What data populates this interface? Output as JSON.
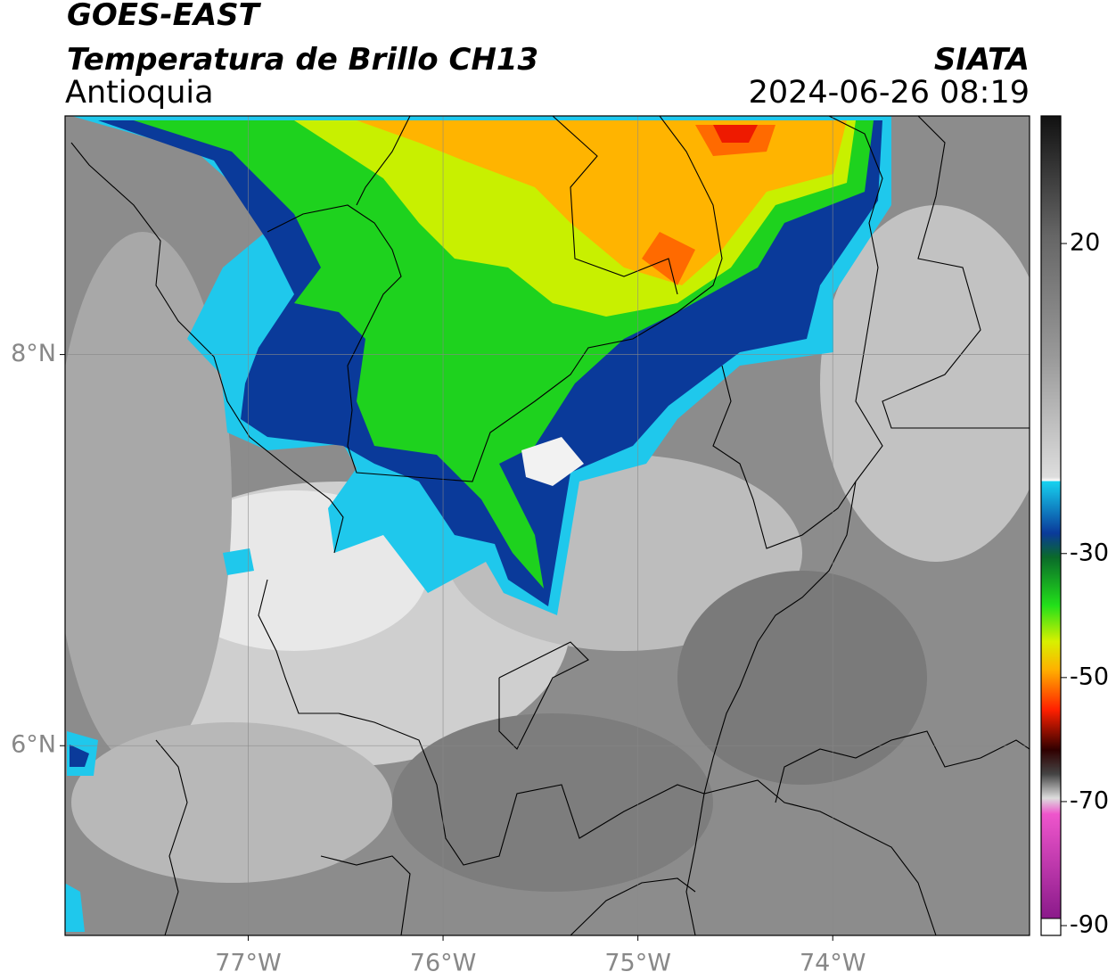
{
  "map": {
    "title": "GOES-EAST",
    "subtitle": "Temperatura de Brillo CH13",
    "region": "Antioquia",
    "source": "SIATA",
    "datetime": "2024-06-26 08:19",
    "lon_lim": [
      -77.94,
      -72.99
    ],
    "lat_lim": [
      5.03,
      9.22
    ],
    "lon_ticks": [
      {
        "value": -77,
        "label": "77°W"
      },
      {
        "value": -76,
        "label": "76°W"
      },
      {
        "value": -75,
        "label": "75°W"
      },
      {
        "value": -74,
        "label": "74°W"
      }
    ],
    "lat_ticks": [
      {
        "value": 8,
        "label": "8°N"
      },
      {
        "value": 6,
        "label": "6°N"
      }
    ],
    "colorbar_lim": [
      -90,
      40
    ],
    "colorbar_ticks": [
      20,
      -30,
      -50,
      -70,
      -90
    ]
  }
}
